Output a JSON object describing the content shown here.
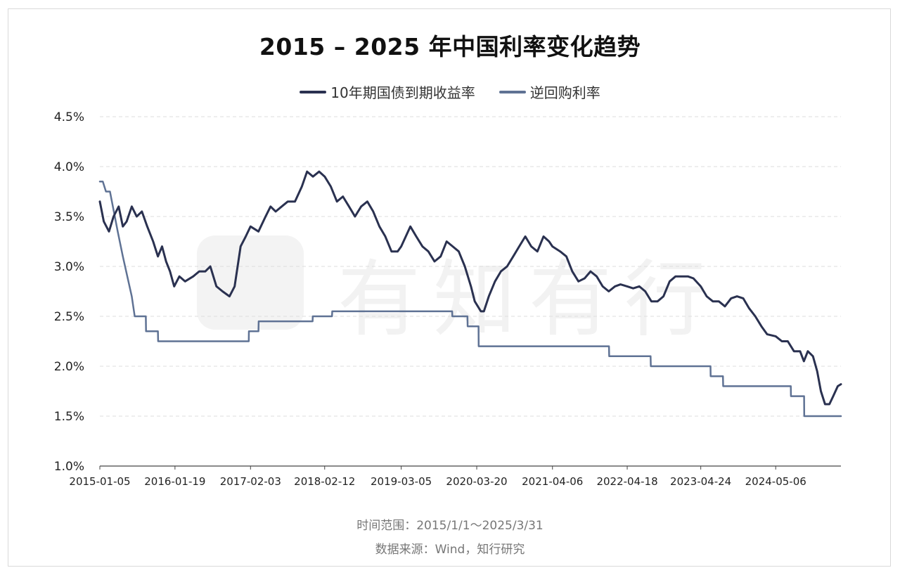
{
  "title": "2015 – 2025 年中国利率变化趋势",
  "legend": [
    {
      "label": "10年期国债到期收益率",
      "color": "#2a3150"
    },
    {
      "label": "逆回购利率",
      "color": "#5f7294"
    }
  ],
  "watermark": "有知有行",
  "footer": {
    "time_range": "时间范围：2015/1/1～2025/3/31",
    "source": "数据来源：Wind，知行研究"
  },
  "chart_data": {
    "type": "line",
    "title": "2015 – 2025 年中国利率变化趋势",
    "xlabel": "",
    "ylabel": "",
    "ylim": [
      1.0,
      4.5
    ],
    "xlim": [
      "2015-01-05",
      "2025-03-31"
    ],
    "y_ticks": [
      "1.0%",
      "1.5%",
      "2.0%",
      "2.5%",
      "3.0%",
      "3.5%",
      "4.0%",
      "4.5%"
    ],
    "x_ticks": [
      "2015-01-05",
      "2016-01-19",
      "2017-02-03",
      "2018-02-12",
      "2019-03-05",
      "2020-03-20",
      "2021-04-06",
      "2022-04-18",
      "2023-04-24",
      "2024-05-06"
    ],
    "grid": true,
    "legend_position": "top-center",
    "series": [
      {
        "name": "10年期国债到期收益率",
        "color": "#2a3150",
        "points": [
          [
            "2015-01-05",
            3.65
          ],
          [
            "2015-01-25",
            3.45
          ],
          [
            "2015-02-20",
            3.35
          ],
          [
            "2015-03-15",
            3.5
          ],
          [
            "2015-04-10",
            3.6
          ],
          [
            "2015-05-01",
            3.4
          ],
          [
            "2015-05-20",
            3.45
          ],
          [
            "2015-06-15",
            3.6
          ],
          [
            "2015-07-10",
            3.5
          ],
          [
            "2015-08-05",
            3.55
          ],
          [
            "2015-09-01",
            3.4
          ],
          [
            "2015-10-01",
            3.25
          ],
          [
            "2015-10-25",
            3.1
          ],
          [
            "2015-11-15",
            3.2
          ],
          [
            "2015-12-05",
            3.05
          ],
          [
            "2015-12-25",
            2.95
          ],
          [
            "2016-01-15",
            2.8
          ],
          [
            "2016-02-10",
            2.9
          ],
          [
            "2016-03-10",
            2.85
          ],
          [
            "2016-04-20",
            2.9
          ],
          [
            "2016-05-20",
            2.95
          ],
          [
            "2016-06-20",
            2.95
          ],
          [
            "2016-07-15",
            3.0
          ],
          [
            "2016-08-15",
            2.8
          ],
          [
            "2016-09-15",
            2.75
          ],
          [
            "2016-10-20",
            2.7
          ],
          [
            "2016-11-15",
            2.8
          ],
          [
            "2016-12-15",
            3.2
          ],
          [
            "2017-01-10",
            3.3
          ],
          [
            "2017-02-03",
            3.4
          ],
          [
            "2017-03-15",
            3.35
          ],
          [
            "2017-04-20",
            3.5
          ],
          [
            "2017-05-15",
            3.6
          ],
          [
            "2017-06-10",
            3.55
          ],
          [
            "2017-07-10",
            3.6
          ],
          [
            "2017-08-10",
            3.65
          ],
          [
            "2017-09-15",
            3.65
          ],
          [
            "2017-10-20",
            3.8
          ],
          [
            "2017-11-15",
            3.95
          ],
          [
            "2017-12-15",
            3.9
          ],
          [
            "2018-01-15",
            3.95
          ],
          [
            "2018-02-12",
            3.9
          ],
          [
            "2018-03-15",
            3.8
          ],
          [
            "2018-04-15",
            3.65
          ],
          [
            "2018-05-15",
            3.7
          ],
          [
            "2018-06-15",
            3.6
          ],
          [
            "2018-07-15",
            3.5
          ],
          [
            "2018-08-15",
            3.6
          ],
          [
            "2018-09-15",
            3.65
          ],
          [
            "2018-10-15",
            3.55
          ],
          [
            "2018-11-15",
            3.4
          ],
          [
            "2018-12-15",
            3.3
          ],
          [
            "2019-01-15",
            3.15
          ],
          [
            "2019-02-15",
            3.15
          ],
          [
            "2019-03-05",
            3.2
          ],
          [
            "2019-04-20",
            3.4
          ],
          [
            "2019-05-20",
            3.3
          ],
          [
            "2019-06-20",
            3.2
          ],
          [
            "2019-07-20",
            3.15
          ],
          [
            "2019-08-20",
            3.05
          ],
          [
            "2019-09-20",
            3.1
          ],
          [
            "2019-10-20",
            3.25
          ],
          [
            "2019-11-20",
            3.2
          ],
          [
            "2019-12-20",
            3.15
          ],
          [
            "2020-01-20",
            3.0
          ],
          [
            "2020-02-20",
            2.8
          ],
          [
            "2020-03-10",
            2.65
          ],
          [
            "2020-04-10",
            2.55
          ],
          [
            "2020-04-25",
            2.55
          ],
          [
            "2020-05-20",
            2.7
          ],
          [
            "2020-06-20",
            2.85
          ],
          [
            "2020-07-20",
            2.95
          ],
          [
            "2020-08-20",
            3.0
          ],
          [
            "2020-09-20",
            3.1
          ],
          [
            "2020-10-20",
            3.2
          ],
          [
            "2020-11-20",
            3.3
          ],
          [
            "2020-12-20",
            3.2
          ],
          [
            "2021-01-20",
            3.15
          ],
          [
            "2021-02-20",
            3.3
          ],
          [
            "2021-03-20",
            3.25
          ],
          [
            "2021-04-06",
            3.2
          ],
          [
            "2021-05-15",
            3.15
          ],
          [
            "2021-06-15",
            3.1
          ],
          [
            "2021-07-15",
            2.95
          ],
          [
            "2021-08-15",
            2.85
          ],
          [
            "2021-09-15",
            2.88
          ],
          [
            "2021-10-15",
            2.95
          ],
          [
            "2021-11-15",
            2.9
          ],
          [
            "2021-12-15",
            2.8
          ],
          [
            "2022-01-15",
            2.75
          ],
          [
            "2022-02-15",
            2.8
          ],
          [
            "2022-03-15",
            2.82
          ],
          [
            "2022-04-18",
            2.8
          ],
          [
            "2022-05-18",
            2.78
          ],
          [
            "2022-06-18",
            2.8
          ],
          [
            "2022-07-18",
            2.75
          ],
          [
            "2022-08-18",
            2.65
          ],
          [
            "2022-09-18",
            2.65
          ],
          [
            "2022-10-18",
            2.7
          ],
          [
            "2022-11-18",
            2.85
          ],
          [
            "2022-12-18",
            2.9
          ],
          [
            "2023-01-18",
            2.9
          ],
          [
            "2023-02-18",
            2.9
          ],
          [
            "2023-03-18",
            2.88
          ],
          [
            "2023-04-24",
            2.8
          ],
          [
            "2023-05-24",
            2.7
          ],
          [
            "2023-06-24",
            2.65
          ],
          [
            "2023-07-24",
            2.65
          ],
          [
            "2023-08-24",
            2.6
          ],
          [
            "2023-09-24",
            2.68
          ],
          [
            "2023-10-24",
            2.7
          ],
          [
            "2023-11-24",
            2.68
          ],
          [
            "2023-12-24",
            2.58
          ],
          [
            "2024-01-24",
            2.5
          ],
          [
            "2024-02-24",
            2.4
          ],
          [
            "2024-03-24",
            2.32
          ],
          [
            "2024-05-06",
            2.3
          ],
          [
            "2024-06-06",
            2.25
          ],
          [
            "2024-07-06",
            2.25
          ],
          [
            "2024-08-06",
            2.15
          ],
          [
            "2024-09-06",
            2.15
          ],
          [
            "2024-09-25",
            2.05
          ],
          [
            "2024-10-15",
            2.15
          ],
          [
            "2024-11-10",
            2.1
          ],
          [
            "2024-12-01",
            1.95
          ],
          [
            "2024-12-20",
            1.75
          ],
          [
            "2025-01-10",
            1.62
          ],
          [
            "2025-02-01",
            1.62
          ],
          [
            "2025-02-20",
            1.7
          ],
          [
            "2025-03-15",
            1.8
          ],
          [
            "2025-03-31",
            1.82
          ]
        ]
      },
      {
        "name": "逆回购利率",
        "color": "#5f7294",
        "points": [
          [
            "2015-01-05",
            3.85
          ],
          [
            "2015-01-20",
            3.85
          ],
          [
            "2015-02-05",
            3.75
          ],
          [
            "2015-02-25",
            3.75
          ],
          [
            "2015-04-05",
            3.35
          ],
          [
            "2015-05-01",
            3.1
          ],
          [
            "2015-06-15",
            2.7
          ],
          [
            "2015-06-30",
            2.5
          ],
          [
            "2015-08-25",
            2.5
          ],
          [
            "2015-08-26",
            2.35
          ],
          [
            "2015-10-25",
            2.35
          ],
          [
            "2015-10-26",
            2.25
          ],
          [
            "2017-01-25",
            2.25
          ],
          [
            "2017-01-26",
            2.35
          ],
          [
            "2017-03-15",
            2.35
          ],
          [
            "2017-03-16",
            2.45
          ],
          [
            "2017-12-13",
            2.45
          ],
          [
            "2017-12-14",
            2.5
          ],
          [
            "2018-03-21",
            2.5
          ],
          [
            "2018-03-22",
            2.55
          ],
          [
            "2019-11-17",
            2.55
          ],
          [
            "2019-11-18",
            2.5
          ],
          [
            "2020-02-02",
            2.5
          ],
          [
            "2020-02-03",
            2.4
          ],
          [
            "2020-03-29",
            2.4
          ],
          [
            "2020-03-30",
            2.2
          ],
          [
            "2022-01-16",
            2.2
          ],
          [
            "2022-01-17",
            2.1
          ],
          [
            "2022-08-14",
            2.1
          ],
          [
            "2022-08-15",
            2.0
          ],
          [
            "2023-06-12",
            2.0
          ],
          [
            "2023-06-13",
            1.9
          ],
          [
            "2023-08-14",
            1.9
          ],
          [
            "2023-08-15",
            1.8
          ],
          [
            "2024-07-21",
            1.8
          ],
          [
            "2024-07-22",
            1.7
          ],
          [
            "2024-09-26",
            1.7
          ],
          [
            "2024-09-27",
            1.5
          ],
          [
            "2025-03-31",
            1.5
          ]
        ]
      }
    ]
  }
}
